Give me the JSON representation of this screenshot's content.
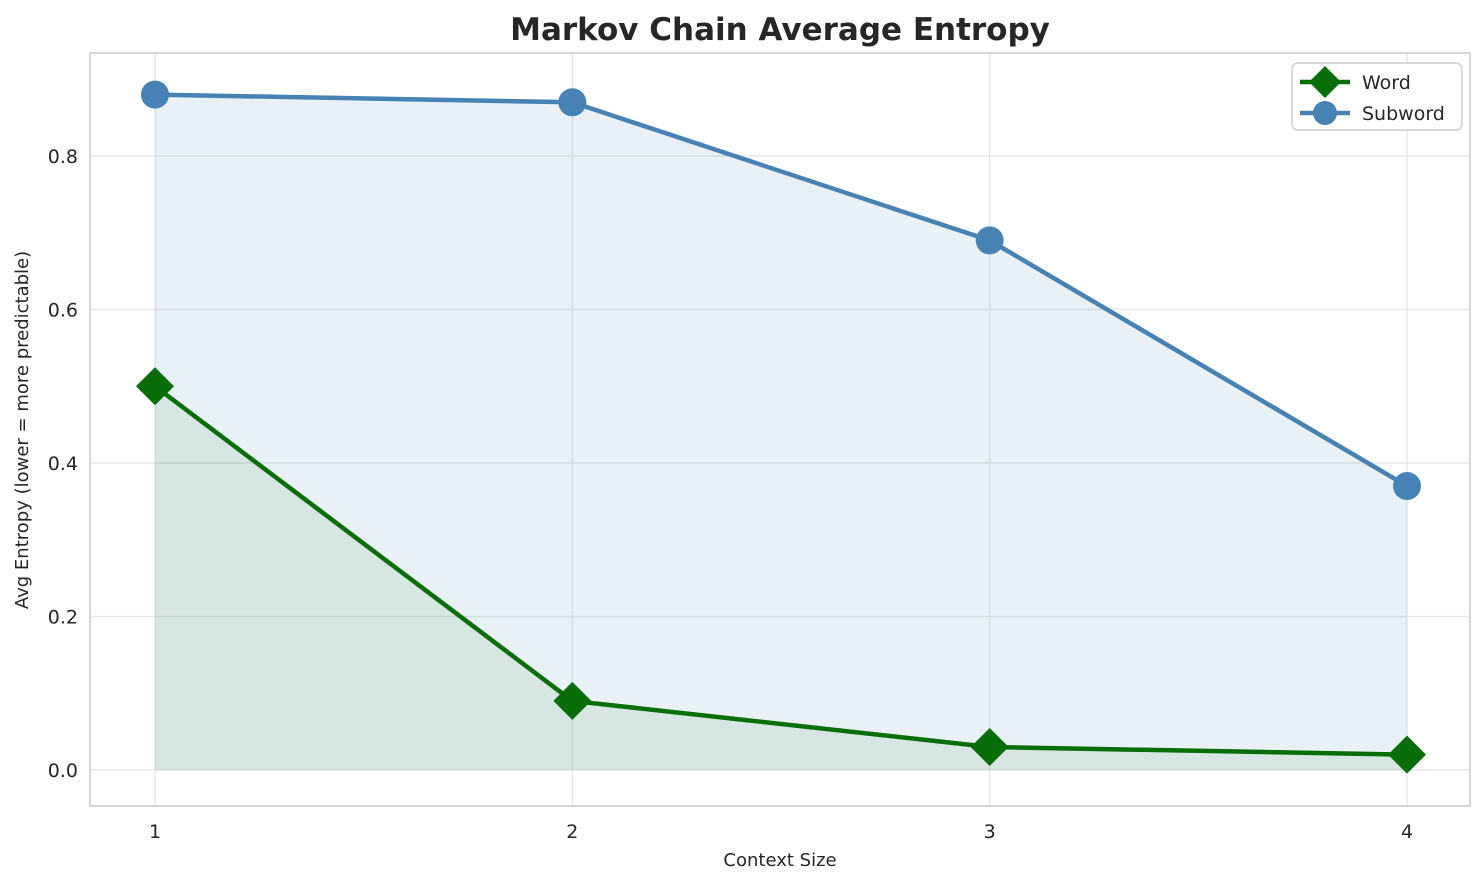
{
  "chart_data": {
    "type": "line",
    "title": "Markov Chain Average Entropy",
    "xlabel": "Context Size",
    "ylabel": "Avg Entropy (lower = more predictable)",
    "x": [
      1,
      2,
      3,
      4
    ],
    "x_tick_labels": [
      "1",
      "2",
      "3",
      "4"
    ],
    "y_ticks": [
      0.0,
      0.2,
      0.4,
      0.6,
      0.8
    ],
    "y_tick_labels": [
      "0.0",
      "0.2",
      "0.4",
      "0.6",
      "0.8"
    ],
    "ylim": [
      -0.047,
      0.934
    ],
    "grid": true,
    "legend_position": "upper right",
    "area_fill_to_zero": true,
    "series": [
      {
        "name": "Word",
        "marker": "diamond",
        "color": "#086e08",
        "fill_alpha": 0.08,
        "values": [
          0.5,
          0.09,
          0.03,
          0.02
        ]
      },
      {
        "name": "Subword",
        "marker": "circle",
        "color": "#4682b4",
        "fill_alpha": 0.12,
        "values": [
          0.88,
          0.87,
          0.69,
          0.37
        ]
      }
    ],
    "style": {
      "grid_color": "#e7e7e7",
      "spine_color": "#cccccc",
      "text_color": "#262626",
      "plot_bg": "#ffffff"
    }
  }
}
